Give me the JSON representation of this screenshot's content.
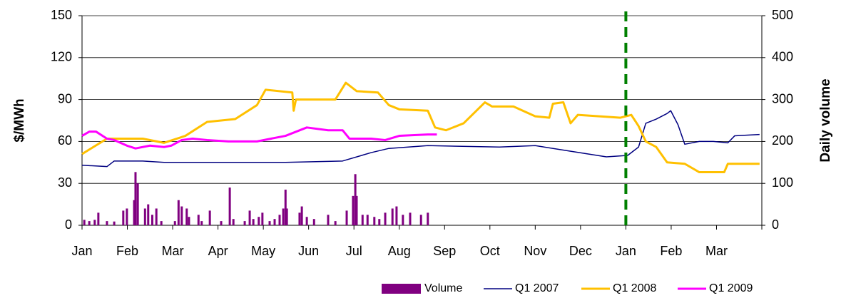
{
  "chart_data": {
    "type": "line",
    "ylabel": "$/MWh",
    "y2label": "Daily volume",
    "categories": [
      "Jan",
      "Feb",
      "Mar",
      "Apr",
      "May",
      "Jun",
      "Jul",
      "Aug",
      "Sep",
      "Oct",
      "Nov",
      "Dec",
      "Jan",
      "Feb",
      "Mar"
    ],
    "xlim": [
      0,
      15
    ],
    "ylim": [
      0,
      150
    ],
    "yticks": [
      0,
      30,
      60,
      90,
      120,
      150
    ],
    "y2lim": [
      0,
      500
    ],
    "y2ticks": [
      0,
      100,
      200,
      300,
      400,
      500
    ],
    "grid": true,
    "vline": {
      "x": 12,
      "color": "#008000"
    },
    "series": [
      {
        "name": "Volume",
        "type": "bar",
        "axis": "y2",
        "color": "#800080",
        "x": [
          0.05,
          0.16,
          0.28,
          0.36,
          0.55,
          0.71,
          0.91,
          0.99,
          1.15,
          1.18,
          1.23,
          1.39,
          1.46,
          1.55,
          1.64,
          1.75,
          2.05,
          2.13,
          2.2,
          2.31,
          2.36,
          2.57,
          2.64,
          2.82,
          3.07,
          3.26,
          3.34,
          3.59,
          3.7,
          3.78,
          3.9,
          3.98,
          4.14,
          4.25,
          4.36,
          4.44,
          4.49,
          4.52,
          4.8,
          4.85,
          4.96,
          5.12,
          5.43,
          5.59,
          5.84,
          5.98,
          6.03,
          6.06,
          6.19,
          6.3,
          6.45,
          6.56,
          6.69,
          6.85,
          6.94,
          7.08,
          7.24,
          7.48,
          7.63
        ],
        "values": [
          13,
          10,
          13,
          30,
          10,
          9,
          35,
          40,
          60,
          127,
          100,
          40,
          50,
          25,
          40,
          10,
          10,
          60,
          45,
          40,
          20,
          25,
          10,
          35,
          10,
          90,
          15,
          10,
          35,
          15,
          20,
          30,
          10,
          15,
          25,
          40,
          85,
          40,
          30,
          45,
          20,
          15,
          25,
          10,
          35,
          70,
          122,
          70,
          25,
          25,
          20,
          15,
          30,
          40,
          45,
          25,
          30,
          25,
          30
        ]
      },
      {
        "name": "Q1 2007",
        "type": "line",
        "color": "#000080",
        "width": 1.5,
        "x": [
          0,
          0.55,
          0.71,
          1.34,
          1.81,
          2.91,
          4.49,
          5.75,
          6.38,
          6.77,
          7.63,
          9.21,
          10,
          10.78,
          11.57,
          12.04,
          12.28,
          12.44,
          12.67,
          12.91,
          12.99,
          13.15,
          13.3,
          13.62,
          13.93,
          14.25,
          14.4,
          14.95
        ],
        "values": [
          43,
          42,
          46,
          46,
          45,
          45,
          45,
          46,
          52,
          55,
          57,
          56,
          57,
          53,
          49,
          50,
          56,
          73,
          76,
          80,
          82,
          72,
          58,
          60,
          60,
          59,
          64,
          65
        ]
      },
      {
        "name": "Q1 2008",
        "type": "line",
        "color": "#FFC000",
        "width": 3,
        "x": [
          0,
          0.55,
          1.34,
          1.81,
          2.28,
          2.76,
          3.38,
          3.86,
          4.05,
          4.64,
          4.67,
          4.72,
          5.59,
          5.82,
          6.06,
          6.53,
          6.77,
          7,
          7.63,
          7.79,
          8.03,
          8.42,
          8.89,
          9.05,
          9.52,
          10,
          10.31,
          10.39,
          10.62,
          10.78,
          10.94,
          11.88,
          12.12,
          12.28,
          12.44,
          12.67,
          12.91,
          13.3,
          13.62,
          14.17,
          14.25,
          14.95
        ],
        "values": [
          51,
          62,
          62,
          59,
          64,
          74,
          76,
          86,
          97,
          95,
          82,
          90,
          90,
          102,
          96,
          95,
          86,
          83,
          82,
          70,
          68,
          73,
          88,
          85,
          85,
          78,
          77,
          87,
          88,
          73,
          79,
          77,
          79,
          71,
          60,
          56,
          45,
          44,
          38,
          38,
          44,
          44
        ]
      },
      {
        "name": "Q1 2009",
        "type": "line",
        "color": "#FF00FF",
        "width": 3,
        "x": [
          0,
          0.16,
          0.31,
          0.55,
          0.71,
          0.99,
          1.18,
          1.5,
          1.81,
          1.97,
          2.2,
          2.44,
          2.76,
          3.23,
          3.86,
          4.17,
          4.49,
          4.96,
          5.43,
          5.75,
          5.9,
          6.38,
          6.69,
          7,
          7.63,
          7.83
        ],
        "values": [
          64,
          67,
          67,
          62,
          61,
          57,
          55,
          57,
          56,
          57,
          61,
          62,
          61,
          60,
          60,
          62,
          64,
          70,
          68,
          68,
          62,
          62,
          61,
          64,
          65,
          65
        ]
      }
    ]
  }
}
